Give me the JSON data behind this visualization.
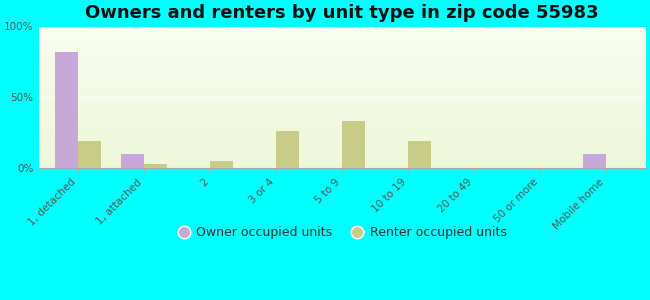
{
  "title": "Owners and renters by unit type in zip code 55983",
  "categories": [
    "1, detached",
    "1, attached",
    "2",
    "3 or 4",
    "5 to 9",
    "10 to 19",
    "20 to 49",
    "50 or more",
    "Mobile home"
  ],
  "owner_values": [
    82,
    10,
    0,
    0,
    0,
    0,
    0,
    0,
    10
  ],
  "renter_values": [
    19,
    3,
    5,
    26,
    33,
    19,
    0,
    0,
    0
  ],
  "owner_color": "#c8a8d8",
  "renter_color": "#c8cc88",
  "outer_bg": "#00ffff",
  "ylim": [
    0,
    100
  ],
  "yticks": [
    0,
    50,
    100
  ],
  "ytick_labels": [
    "0%",
    "50%",
    "100%"
  ],
  "bar_width": 0.35,
  "legend_owner": "Owner occupied units",
  "legend_renter": "Renter occupied units",
  "title_fontsize": 13,
  "tick_fontsize": 7.5,
  "legend_fontsize": 9
}
